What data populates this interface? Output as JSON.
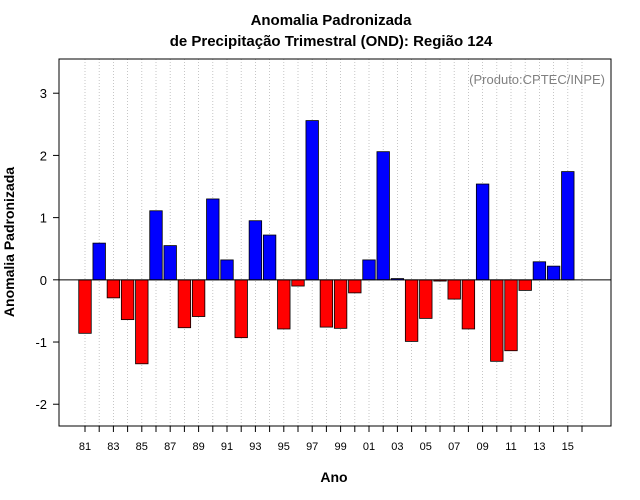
{
  "chart_data": {
    "type": "bar",
    "title_line1": "Anomalia Padronizada",
    "title_line2": "de Precipitação Trimestral (OND): Região 124",
    "annotation": "(Produto:CPTEC/INPE)",
    "xlabel": "Ano",
    "ylabel": "Anomalia Padronizada",
    "ylim": [
      -2.35,
      3.55
    ],
    "yticks": [
      -2,
      -1,
      0,
      1,
      2,
      3
    ],
    "ytick_labels": [
      "-2",
      "-1",
      "0",
      "1",
      "2",
      "3"
    ],
    "grid": "vertical dotted",
    "positive_color": "#0000ff",
    "negative_color": "#ff0000",
    "categories": [
      "81",
      "82",
      "83",
      "84",
      "85",
      "86",
      "87",
      "88",
      "89",
      "90",
      "91",
      "92",
      "93",
      "94",
      "95",
      "96",
      "97",
      "98",
      "99",
      "00",
      "01",
      "02",
      "03",
      "04",
      "05",
      "06",
      "07",
      "08",
      "09",
      "10",
      "11",
      "12",
      "13",
      "14",
      "15",
      "16"
    ],
    "xtick_labels": [
      "81",
      "83",
      "85",
      "87",
      "89",
      "91",
      "93",
      "95",
      "97",
      "99",
      "01",
      "03",
      "05",
      "07",
      "09",
      "11",
      "13",
      "15"
    ],
    "values": [
      -0.86,
      0.59,
      -0.29,
      -0.64,
      -1.35,
      1.11,
      0.55,
      -0.77,
      -0.59,
      1.3,
      0.32,
      -0.93,
      0.95,
      0.72,
      -0.79,
      -0.1,
      2.56,
      -0.76,
      -0.78,
      -0.21,
      0.32,
      2.06,
      0.02,
      -0.99,
      -0.62,
      -0.02,
      -0.31,
      -0.79,
      1.54,
      -1.31,
      -1.14,
      -0.17,
      0.29,
      0.22,
      1.74,
      null
    ]
  }
}
